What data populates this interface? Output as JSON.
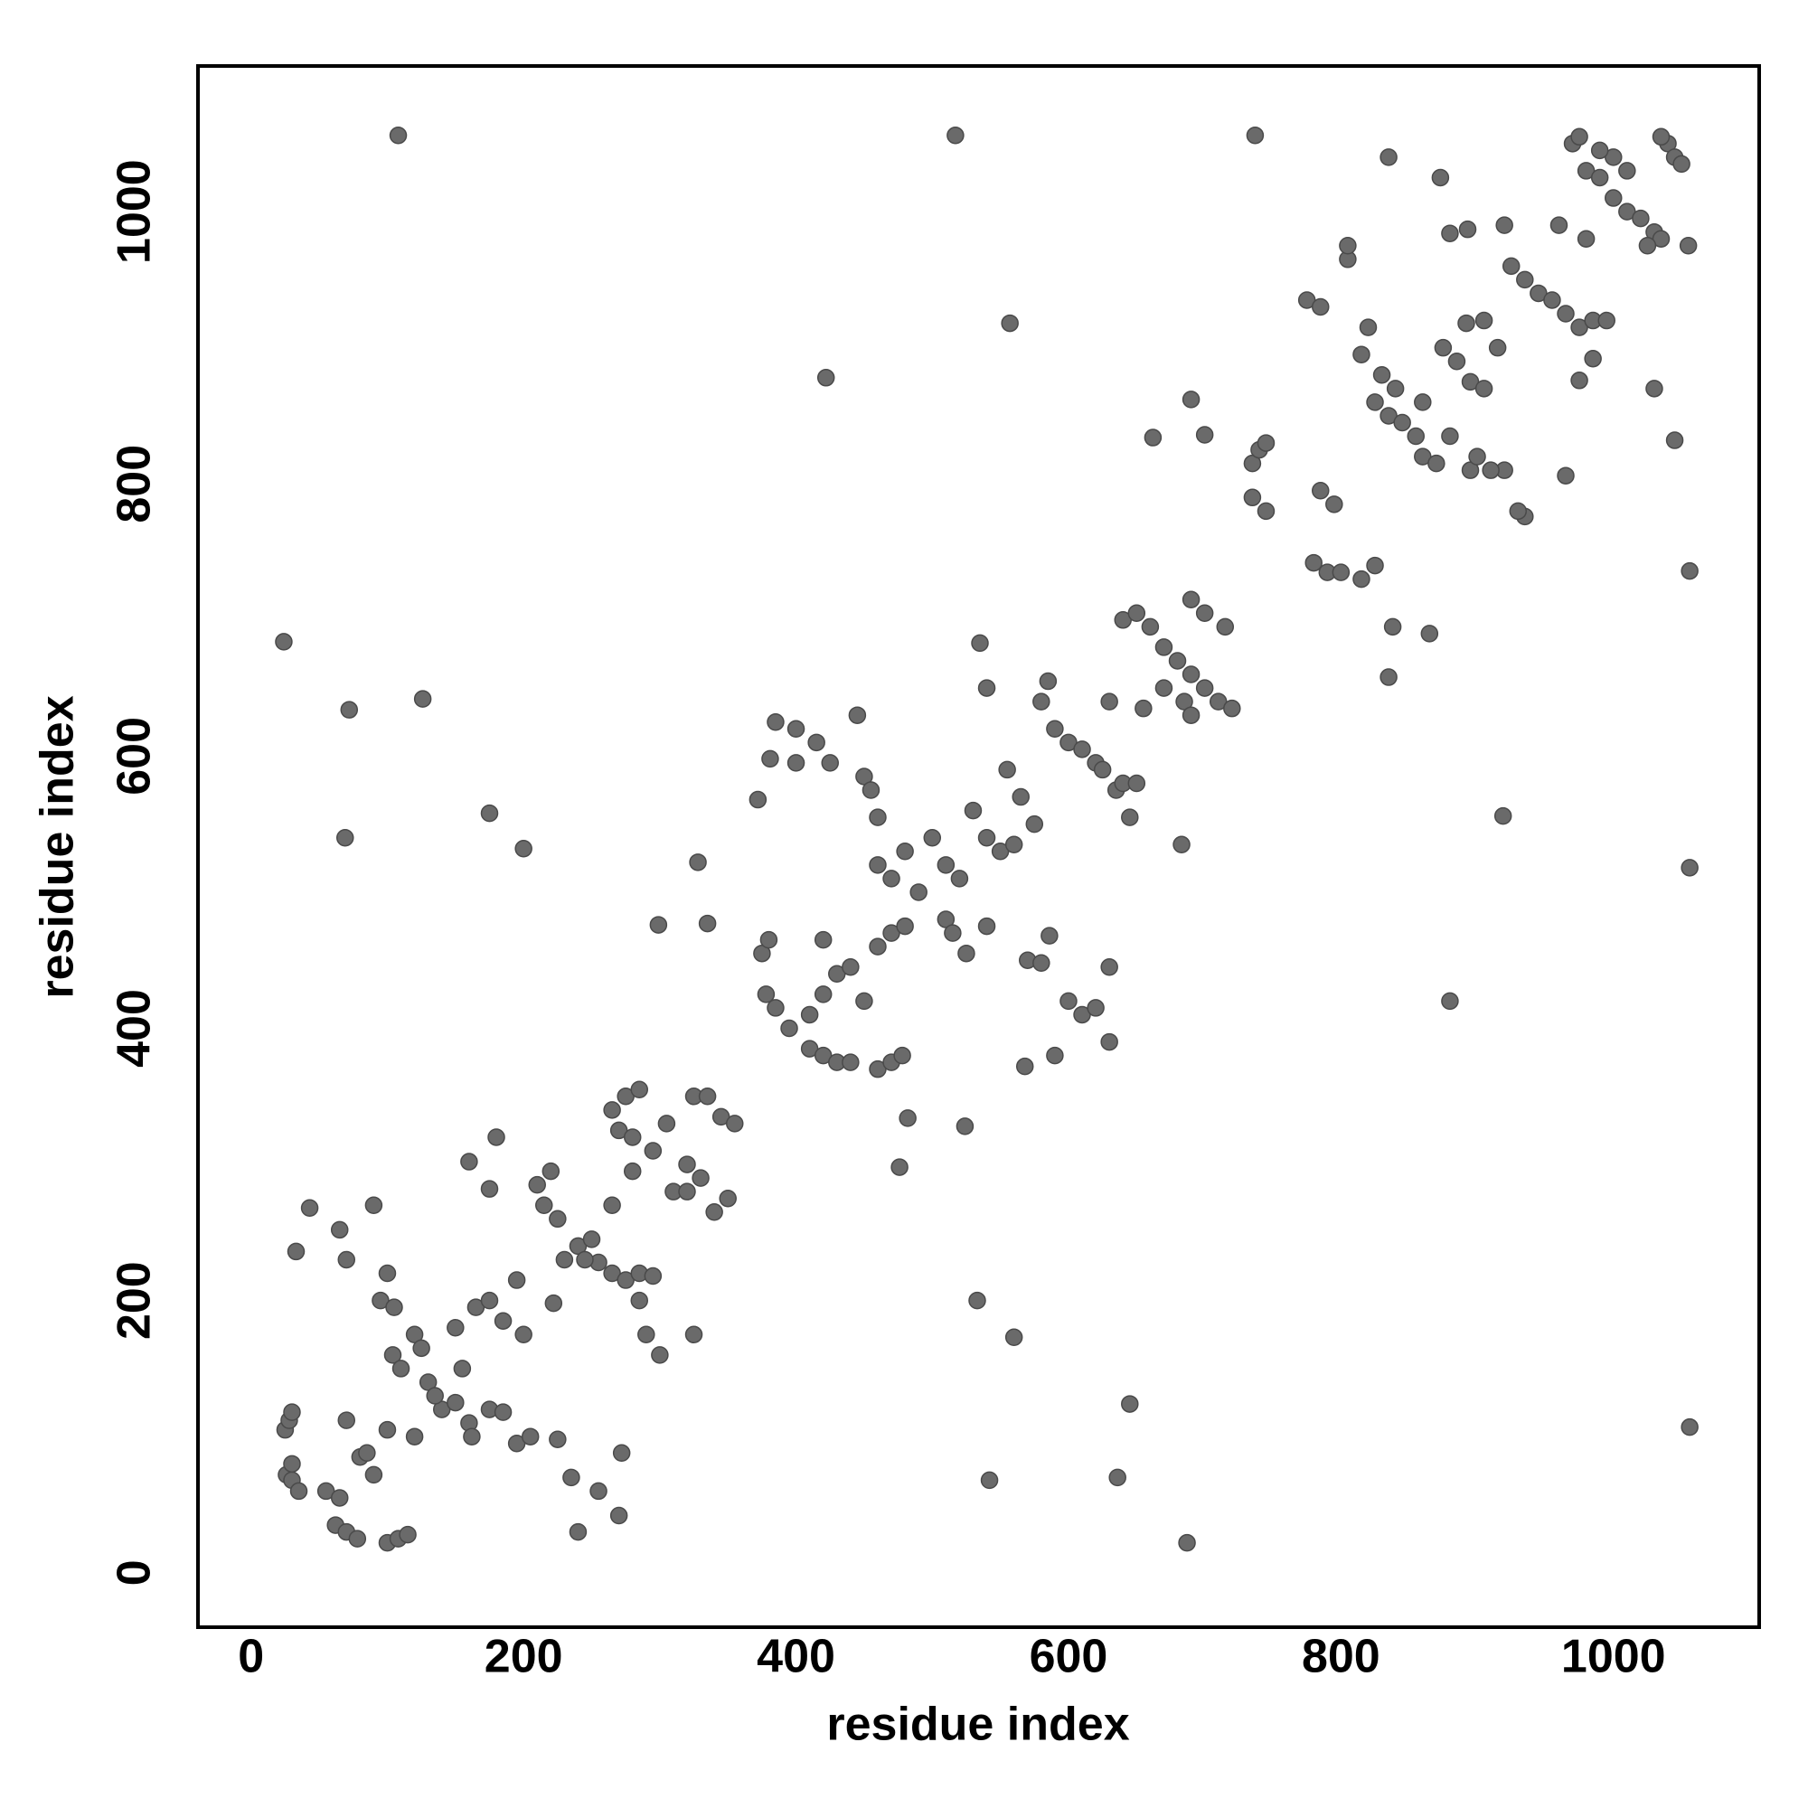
{
  "chart_data": {
    "type": "scatter",
    "x_label": "residue index",
    "y_label": "residue index",
    "color": "#6a6a6a",
    "edge_color": "#4a4a4a",
    "grid": false,
    "xlim": [
      -39,
      1107
    ],
    "ylim": [
      -40,
      1107
    ],
    "xticks": [
      0,
      200,
      400,
      600,
      800,
      1000
    ],
    "yticks": [
      0,
      200,
      400,
      600,
      800,
      1000
    ],
    "x": [
      108,
      517,
      737,
      24,
      72,
      126,
      69,
      175,
      200,
      422,
      557,
      328,
      299,
      335,
      381,
      372,
      662,
      690,
      700,
      835,
      873,
      880,
      893,
      919,
      1056,
      1056,
      1056,
      880,
      865,
      835,
      838,
      533,
      560,
      542,
      636,
      645,
      687,
      524,
      476,
      482,
      568,
      586,
      43,
      90,
      160,
      70,
      65,
      33,
      1045,
      1030,
      985,
      975,
      965,
      960,
      935,
      920,
      895,
      892,
      905,
      25,
      28,
      30,
      26,
      30,
      35,
      30,
      62,
      70,
      78,
      100,
      108,
      115,
      70,
      80,
      90,
      85,
      100,
      104,
      110,
      120,
      125,
      130,
      140,
      150,
      160,
      162,
      155,
      165,
      175,
      185,
      200,
      195,
      100,
      95,
      105,
      120,
      135,
      150,
      175,
      185,
      195,
      205,
      225,
      235,
      240,
      255,
      270,
      272,
      55,
      65,
      210,
      220,
      215,
      225,
      240,
      250,
      255,
      265,
      275,
      285,
      295,
      222,
      180,
      175,
      265,
      275,
      285,
      270,
      280,
      295,
      305,
      320,
      330,
      325,
      335,
      345,
      355,
      350,
      340,
      310,
      320,
      290,
      285,
      300,
      325,
      265,
      280,
      230,
      245,
      375,
      380,
      378,
      385,
      395,
      410,
      420,
      430,
      440,
      410,
      420,
      430,
      440,
      420,
      385,
      400,
      415,
      425,
      445,
      450,
      455,
      460,
      460,
      470,
      480,
      490,
      470,
      480,
      460,
      450,
      460,
      470,
      478,
      400,
      500,
      510,
      520,
      510,
      515,
      525,
      540,
      530,
      540,
      550,
      560,
      555,
      565,
      575,
      580,
      585,
      590,
      600,
      610,
      620,
      625,
      635,
      640,
      645,
      650,
      630,
      640,
      650,
      660,
      670,
      680,
      690,
      700,
      710,
      720,
      690,
      700,
      715,
      655,
      670,
      685,
      690,
      683,
      600,
      610,
      620,
      630,
      630,
      590,
      570,
      580,
      540,
      535,
      735,
      740,
      745,
      735,
      745,
      780,
      790,
      800,
      815,
      825,
      785,
      795,
      805,
      805,
      775,
      785,
      815,
      820,
      825,
      835,
      845,
      855,
      860,
      870,
      830,
      840,
      860,
      875,
      885,
      895,
      905,
      880,
      900,
      910,
      915,
      920,
      925,
      935,
      945,
      955,
      965,
      975,
      985,
      995,
      970,
      975,
      980,
      990,
      1000,
      1010,
      1000,
      1010,
      1020,
      1030,
      1040,
      1045,
      1050,
      1055,
      1035,
      1025,
      980,
      1035,
      930,
      990
    ],
    "y": [
      1056,
      1056,
      1056,
      684,
      634,
      642,
      540,
      558,
      532,
      878,
      918,
      522,
      476,
      477,
      598,
      568,
      834,
      862,
      836,
      1040,
      1025,
      984,
      987,
      556,
      736,
      518,
      107,
      420,
      690,
      658,
      695,
      200,
      173,
      68,
      70,
      124,
      22,
      328,
      298,
      334,
      372,
      468,
      268,
      270,
      302,
      230,
      252,
      236,
      832,
      870,
      892,
      876,
      806,
      990,
      776,
      810,
      810,
      918,
      920,
      105,
      112,
      118,
      72,
      68,
      60,
      80,
      35,
      30,
      25,
      22,
      25,
      28,
      112,
      85,
      72,
      88,
      105,
      160,
      150,
      175,
      165,
      140,
      120,
      125,
      110,
      100,
      150,
      195,
      200,
      185,
      175,
      215,
      220,
      200,
      195,
      100,
      130,
      180,
      120,
      118,
      95,
      100,
      98,
      70,
      30,
      60,
      42,
      88,
      60,
      55,
      285,
      295,
      270,
      260,
      240,
      245,
      228,
      220,
      215,
      220,
      218,
      198,
      320,
      282,
      340,
      350,
      355,
      325,
      320,
      310,
      330,
      300,
      290,
      350,
      350,
      335,
      330,
      275,
      265,
      280,
      280,
      175,
      200,
      160,
      175,
      270,
      295,
      230,
      230,
      455,
      465,
      425,
      415,
      400,
      385,
      380,
      375,
      375,
      410,
      425,
      440,
      445,
      465,
      625,
      620,
      610,
      595,
      630,
      585,
      575,
      555,
      520,
      510,
      530,
      500,
      470,
      475,
      460,
      420,
      370,
      375,
      380,
      595,
      540,
      520,
      510,
      480,
      470,
      455,
      475,
      560,
      540,
      530,
      535,
      590,
      570,
      550,
      640,
      655,
      620,
      610,
      605,
      595,
      590,
      575,
      580,
      555,
      580,
      640,
      700,
      705,
      695,
      680,
      670,
      660,
      650,
      640,
      635,
      715,
      705,
      695,
      635,
      650,
      640,
      630,
      535,
      420,
      410,
      415,
      390,
      445,
      380,
      450,
      448,
      650,
      683,
      815,
      825,
      830,
      790,
      780,
      742,
      735,
      735,
      730,
      740,
      795,
      785,
      965,
      975,
      935,
      930,
      895,
      915,
      860,
      850,
      845,
      835,
      820,
      815,
      880,
      870,
      860,
      900,
      890,
      875,
      870,
      835,
      820,
      810,
      900,
      990,
      960,
      950,
      940,
      935,
      925,
      915,
      920,
      920,
      1050,
      1055,
      1030,
      1025,
      1040,
      1030,
      1010,
      1000,
      995,
      985,
      1050,
      1040,
      1035,
      975,
      980,
      975,
      980,
      1055,
      780,
      1045
    ]
  }
}
